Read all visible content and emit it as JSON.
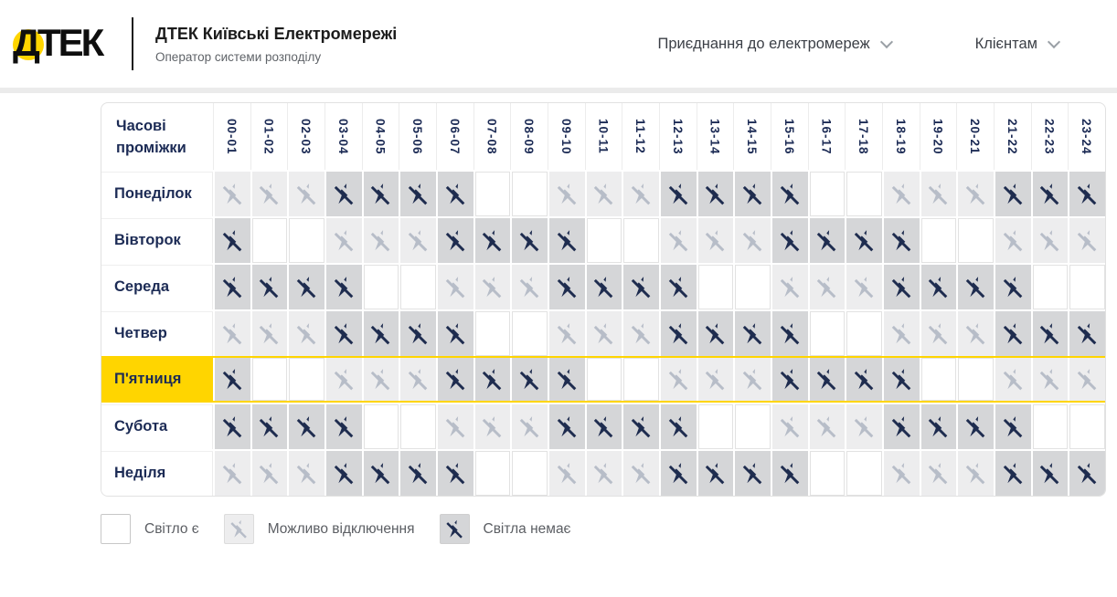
{
  "header": {
    "logo_text": "ДТЕК",
    "company": "ДТЕК Київські Електромережі",
    "subtitle": "Оператор системи розподілу",
    "nav": [
      {
        "label": "Приєднання до електромереж"
      },
      {
        "label": "Клієнтам"
      }
    ]
  },
  "table": {
    "corner_label_line1": "Часові",
    "corner_label_line2": "проміжки",
    "time_slots": [
      "00-01",
      "01-02",
      "02-03",
      "03-04",
      "04-05",
      "05-06",
      "06-07",
      "07-08",
      "08-09",
      "09-10",
      "10-11",
      "11-12",
      "12-13",
      "13-14",
      "14-15",
      "15-16",
      "16-17",
      "17-18",
      "18-19",
      "19-20",
      "20-21",
      "21-22",
      "22-23",
      "23-24"
    ],
    "state_meanings": {
      "on": "Світло є",
      "maybe": "Можливо відключення",
      "off": "Світла немає"
    },
    "rows": [
      {
        "day": "Понеділок",
        "highlight": false,
        "cells": [
          "maybe",
          "maybe",
          "maybe",
          "off",
          "off",
          "off",
          "off",
          "on",
          "on",
          "maybe",
          "maybe",
          "maybe",
          "off",
          "off",
          "off",
          "off",
          "on",
          "on",
          "maybe",
          "maybe",
          "maybe",
          "off",
          "off",
          "off"
        ]
      },
      {
        "day": "Вівторок",
        "highlight": false,
        "cells": [
          "off",
          "on",
          "on",
          "maybe",
          "maybe",
          "maybe",
          "off",
          "off",
          "off",
          "off",
          "on",
          "on",
          "maybe",
          "maybe",
          "maybe",
          "off",
          "off",
          "off",
          "off",
          "on",
          "on",
          "maybe",
          "maybe",
          "maybe"
        ]
      },
      {
        "day": "Середа",
        "highlight": false,
        "cells": [
          "off",
          "off",
          "off",
          "off",
          "on",
          "on",
          "maybe",
          "maybe",
          "maybe",
          "off",
          "off",
          "off",
          "off",
          "on",
          "on",
          "maybe",
          "maybe",
          "maybe",
          "off",
          "off",
          "off",
          "off",
          "on",
          "on"
        ]
      },
      {
        "day": "Четвер",
        "highlight": false,
        "cells": [
          "maybe",
          "maybe",
          "maybe",
          "off",
          "off",
          "off",
          "off",
          "on",
          "on",
          "maybe",
          "maybe",
          "maybe",
          "off",
          "off",
          "off",
          "off",
          "on",
          "on",
          "maybe",
          "maybe",
          "maybe",
          "off",
          "off",
          "off"
        ]
      },
      {
        "day": "П'ятниця",
        "highlight": true,
        "cells": [
          "off",
          "on",
          "on",
          "maybe",
          "maybe",
          "maybe",
          "off",
          "off",
          "off",
          "off",
          "on",
          "on",
          "maybe",
          "maybe",
          "maybe",
          "off",
          "off",
          "off",
          "off",
          "on",
          "on",
          "maybe",
          "maybe",
          "maybe"
        ]
      },
      {
        "day": "Субота",
        "highlight": false,
        "cells": [
          "off",
          "off",
          "off",
          "off",
          "on",
          "on",
          "maybe",
          "maybe",
          "maybe",
          "off",
          "off",
          "off",
          "off",
          "on",
          "on",
          "maybe",
          "maybe",
          "maybe",
          "off",
          "off",
          "off",
          "off",
          "on",
          "on"
        ]
      },
      {
        "day": "Неділя",
        "highlight": false,
        "cells": [
          "maybe",
          "maybe",
          "maybe",
          "off",
          "off",
          "off",
          "off",
          "on",
          "on",
          "maybe",
          "maybe",
          "maybe",
          "off",
          "off",
          "off",
          "off",
          "on",
          "on",
          "maybe",
          "maybe",
          "maybe",
          "off",
          "off",
          "off"
        ]
      }
    ]
  },
  "legend": [
    {
      "state": "on",
      "label": "Світло є"
    },
    {
      "state": "maybe",
      "label": "Можливо відключення"
    },
    {
      "state": "off",
      "label": "Світла немає"
    }
  ],
  "colors": {
    "navy": "#1c2b55",
    "yellow": "#ffd500",
    "cell_maybe": "#ededee",
    "cell_off": "#d5d6d8",
    "icon_maybe": "#b7bdc8",
    "icon_off": "#1e2c4f",
    "header_strip": "#ebebeb",
    "table_border": "#e1e1e1"
  }
}
